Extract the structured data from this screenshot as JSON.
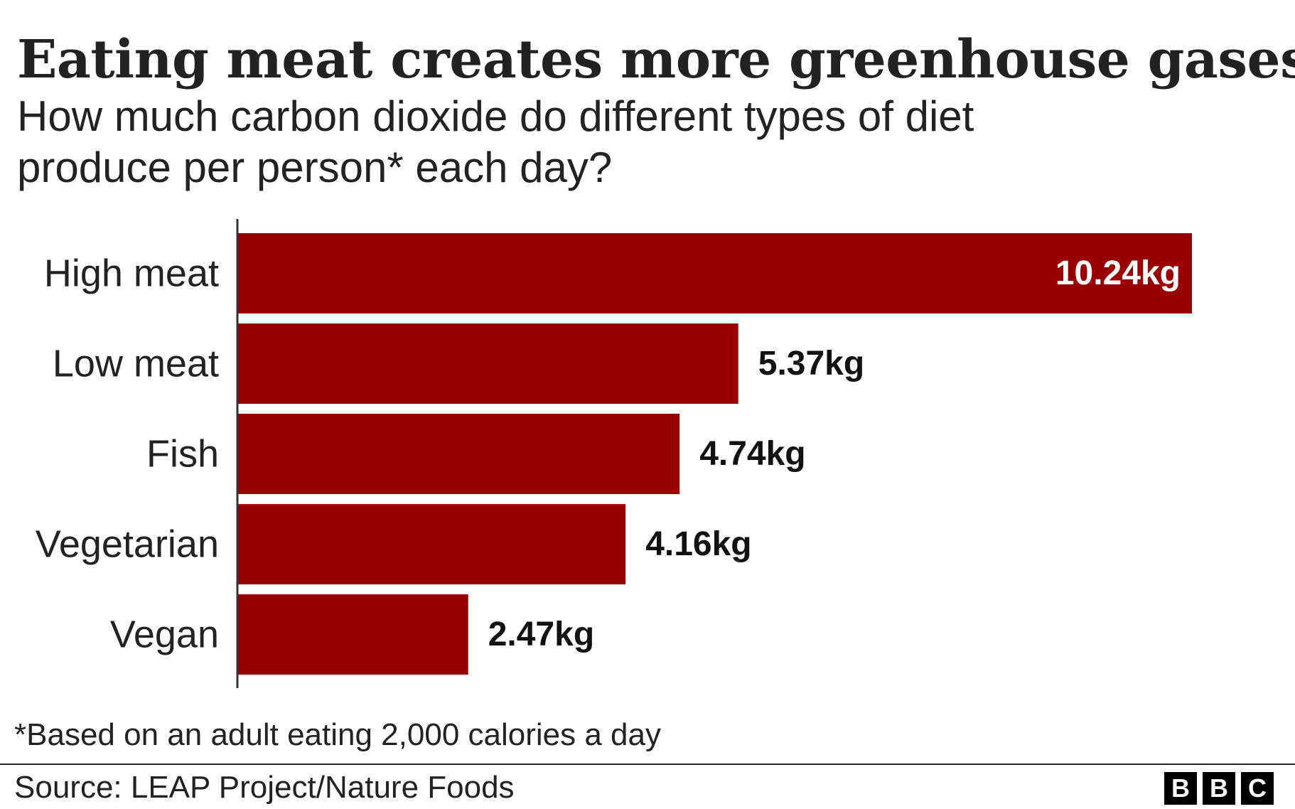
{
  "header": {
    "title": "Eating meat creates more greenhouse gases",
    "subtitle": "How much carbon dioxide do different types of diet produce per person* each day?"
  },
  "footer": {
    "footnote": "*Based on an adult eating 2,000 calories a day",
    "source": "Source: LEAP Project/Nature Foods",
    "logo_letters": [
      "B",
      "B",
      "C"
    ]
  },
  "colors": {
    "bar": "#990000",
    "text": "#222222",
    "inside_label": "#ffffff"
  },
  "chart_data": {
    "type": "bar",
    "orientation": "horizontal",
    "title": "Eating meat creates more greenhouse gases",
    "subtitle": "How much carbon dioxide do different types of diet produce per person* each day?",
    "categories": [
      "High meat",
      "Low meat",
      "Fish",
      "Vegetarian",
      "Vegan"
    ],
    "values": [
      10.24,
      5.37,
      4.74,
      4.16,
      2.47
    ],
    "value_labels": [
      "10.24kg",
      "5.37kg",
      "4.74kg",
      "4.16kg",
      "2.47kg"
    ],
    "unit": "kg",
    "xlabel": "",
    "ylabel": "",
    "xlim": [
      0,
      10.24
    ],
    "grid": false,
    "legend": "none"
  }
}
